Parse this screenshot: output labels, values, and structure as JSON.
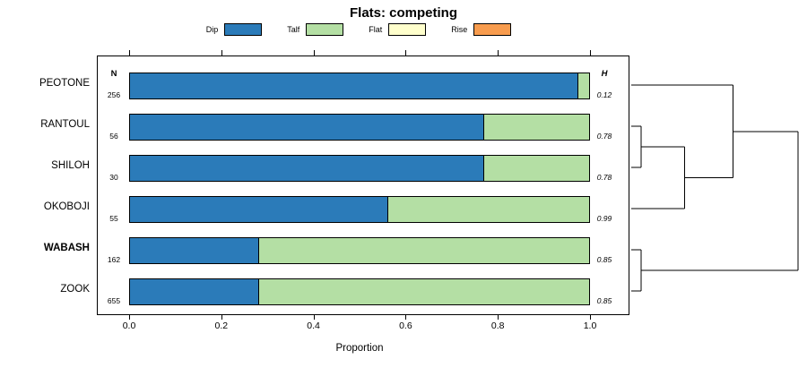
{
  "title": "Flats: competing",
  "columns": {
    "n_header": "N",
    "h_header": "H"
  },
  "legend": [
    {
      "label": "Dip",
      "color": "#2b7bb9"
    },
    {
      "label": "Talf",
      "color": "#b4dfa4"
    },
    {
      "label": "Flat",
      "color": "#ffffcc"
    },
    {
      "label": "Rise",
      "color": "#f89c4e"
    }
  ],
  "axis": {
    "ticks": [
      "0.0",
      "0.2",
      "0.4",
      "0.6",
      "0.8",
      "1.0"
    ]
  },
  "chart_data": {
    "type": "bar",
    "orientation": "horizontal-stacked",
    "title": "Flats: competing",
    "xlabel": "Proportion",
    "xlim": [
      0,
      1
    ],
    "categories": [
      "PEOTONE",
      "RANTOUL",
      "SHILOH",
      "OKOBOJI",
      "WABASH",
      "ZOOK"
    ],
    "bold_category": "WABASH",
    "n": [
      256,
      56,
      30,
      55,
      162,
      655
    ],
    "h": [
      0.12,
      0.78,
      0.78,
      0.99,
      0.85,
      0.85
    ],
    "series": [
      {
        "name": "Dip",
        "color": "#2b7bb9",
        "values": [
          0.975,
          0.77,
          0.77,
          0.56,
          0.28,
          0.28
        ]
      },
      {
        "name": "Talf",
        "color": "#b4dfa4",
        "values": [
          0.025,
          0.23,
          0.23,
          0.44,
          0.72,
          0.72
        ]
      },
      {
        "name": "Flat",
        "color": "#ffffcc",
        "values": [
          0,
          0,
          0,
          0,
          0,
          0
        ]
      },
      {
        "name": "Rise",
        "color": "#f89c4e",
        "values": [
          0,
          0,
          0,
          0,
          0,
          0
        ]
      }
    ]
  },
  "dendrogram": {
    "tree": {
      "height": 1.0,
      "children": [
        {
          "height": 0.61,
          "children": [
            {
              "leaf": "PEOTONE"
            },
            {
              "height": 0.32,
              "children": [
                {
                  "height": 0.06,
                  "children": [
                    {
                      "leaf": "RANTOUL"
                    },
                    {
                      "leaf": "SHILOH"
                    }
                  ]
                },
                {
                  "leaf": "OKOBOJI"
                }
              ]
            }
          ]
        },
        {
          "height": 0.06,
          "children": [
            {
              "leaf": "WABASH"
            },
            {
              "leaf": "ZOOK"
            }
          ]
        }
      ]
    }
  }
}
